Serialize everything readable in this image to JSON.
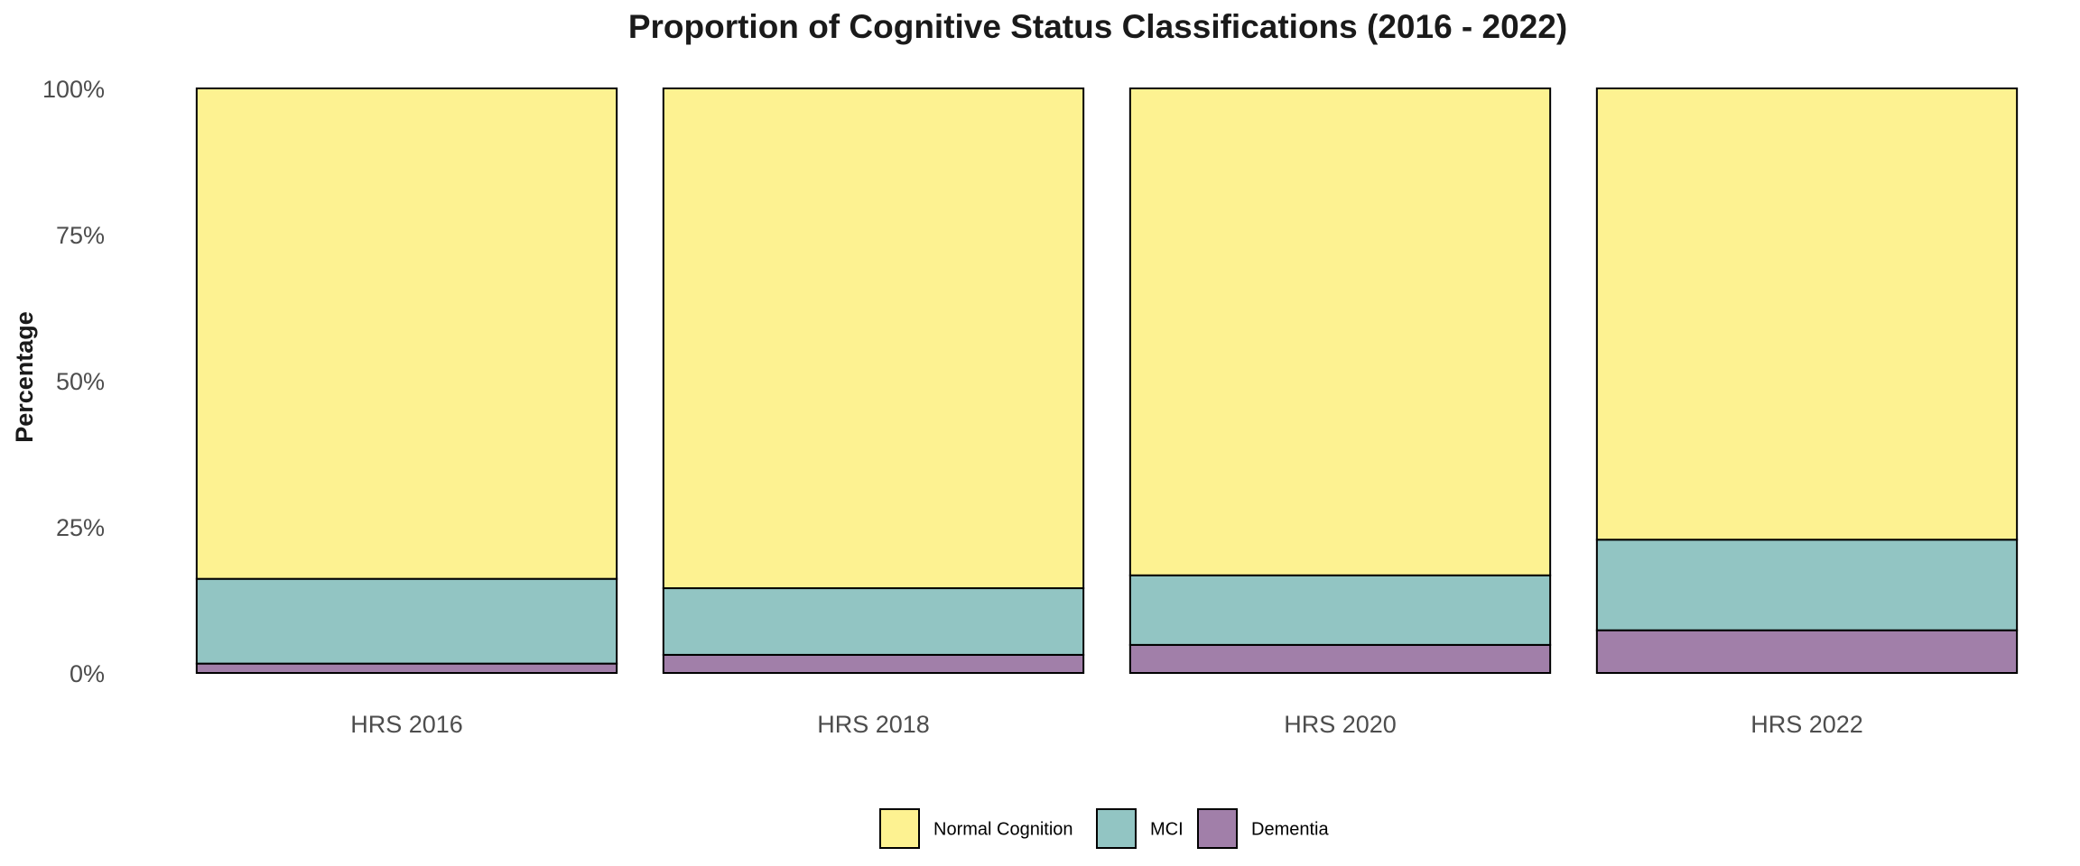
{
  "chart_data": {
    "type": "bar",
    "stacked": true,
    "title": "Proportion of Cognitive Status Classifications (2016 - 2022)",
    "xlabel": "",
    "ylabel": "Percentage",
    "ylim": [
      0,
      100
    ],
    "yticks": [
      {
        "value": 0,
        "label": "0%"
      },
      {
        "value": 25,
        "label": "25%"
      },
      {
        "value": 50,
        "label": "50%"
      },
      {
        "value": 75,
        "label": "75%"
      },
      {
        "value": 100,
        "label": "100%"
      }
    ],
    "categories": [
      "HRS 2016",
      "HRS 2018",
      "HRS 2020",
      "HRS 2022"
    ],
    "series": [
      {
        "name": "Dementia",
        "color": "#a17fa9",
        "values": [
          1.6,
          3.1,
          4.8,
          7.3
        ]
      },
      {
        "name": "MCI",
        "color": "#92c5c3",
        "values": [
          14.5,
          11.4,
          11.9,
          15.5
        ]
      },
      {
        "name": "Normal Cognition",
        "color": "#fdf291",
        "values": [
          83.9,
          85.5,
          83.3,
          77.2
        ]
      }
    ],
    "legend": {
      "position": "bottom",
      "order": [
        "Normal Cognition",
        "MCI",
        "Dementia"
      ]
    },
    "grid": false
  }
}
